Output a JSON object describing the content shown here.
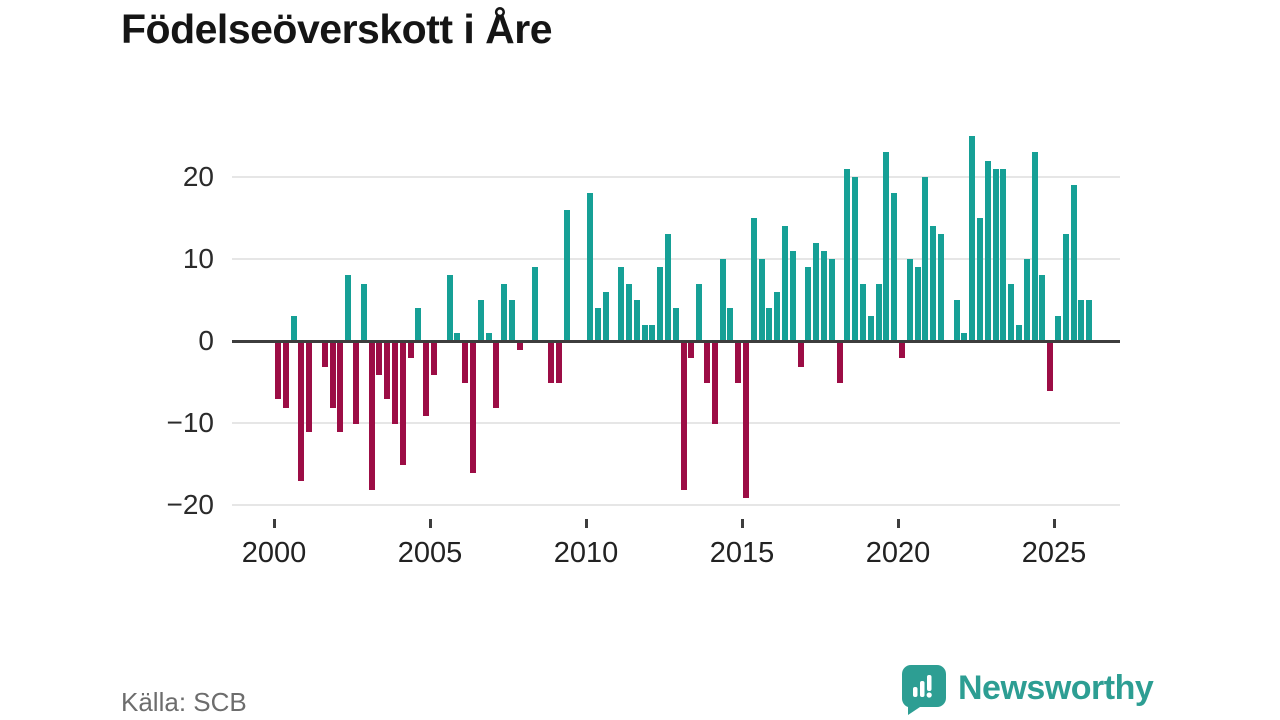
{
  "title": "Födelseöverskott i Åre",
  "source": "Källa: SCB",
  "branding": {
    "name": "Newsworthy"
  },
  "colors": {
    "positive": "#16a096",
    "negative": "#9c0d45",
    "axis_line": "#3d3d3d",
    "gridline": "#e6e6e6",
    "brand_teal": "#2d9e93",
    "title_text": "#151515",
    "tick_text": "#2b2b2b",
    "source_text": "#6d6d6d"
  },
  "chart_data": {
    "type": "bar",
    "title": "Födelseöverskott i Åre",
    "frequency": "quarterly",
    "start_period": "2000-Q1",
    "end_period": "2026-Q1",
    "xlabel": "",
    "ylabel": "",
    "ylim": [
      -22,
      26
    ],
    "grid": "horizontal",
    "legend": "none",
    "y_ticks": [
      {
        "label": "20",
        "value": 20
      },
      {
        "label": "10",
        "value": 10
      },
      {
        "label": "0",
        "value": 0
      },
      {
        "label": "−10",
        "value": -10
      },
      {
        "label": "−20",
        "value": -20
      }
    ],
    "x_ticks": [
      {
        "label": "2000",
        "year": 2000
      },
      {
        "label": "2005",
        "year": 2005
      },
      {
        "label": "2010",
        "year": 2010
      },
      {
        "label": "2015",
        "year": 2015
      },
      {
        "label": "2020",
        "year": 2020
      },
      {
        "label": "2025",
        "year": 2025
      }
    ],
    "values": [
      -7,
      -8,
      3,
      -17,
      -11,
      0,
      -3,
      -8,
      -11,
      8,
      -10,
      7,
      -18,
      -4,
      -7,
      -10,
      -15,
      -2,
      4,
      -9,
      -4,
      0,
      8,
      1,
      -5,
      -16,
      5,
      1,
      -8,
      7,
      5,
      -1,
      0,
      9,
      0,
      -5,
      -5,
      16,
      0,
      0,
      18,
      4,
      6,
      0,
      9,
      7,
      5,
      2,
      2,
      9,
      13,
      4,
      -18,
      -2,
      7,
      -5,
      -10,
      10,
      4,
      -5,
      -19,
      15,
      10,
      4,
      6,
      14,
      11,
      -3,
      9,
      12,
      11,
      10,
      -5,
      21,
      20,
      7,
      3,
      7,
      23,
      18,
      -2,
      10,
      9,
      20,
      14,
      13,
      0,
      5,
      1,
      25,
      15,
      22,
      21,
      21,
      7,
      2,
      10,
      23,
      8,
      -6,
      3,
      13,
      19,
      5,
      5
    ]
  }
}
